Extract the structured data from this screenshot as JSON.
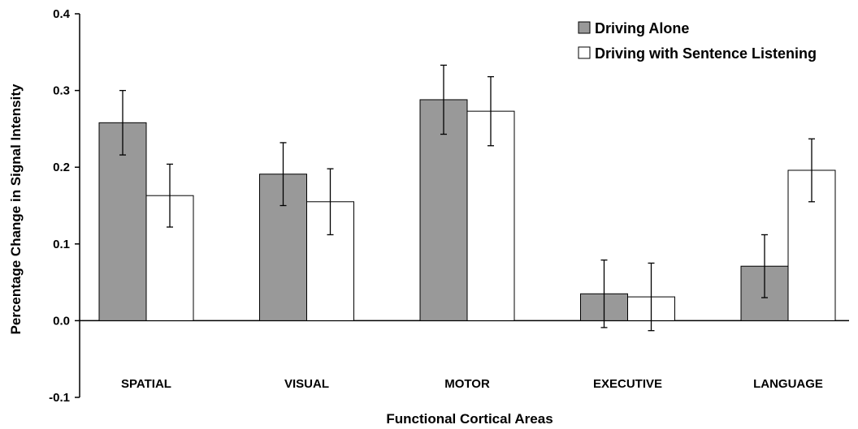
{
  "chart_data": {
    "type": "bar",
    "title": "",
    "xlabel": "Functional Cortical Areas",
    "ylabel": "Percentage Change in Signal Intensity",
    "ylim": [
      -0.1,
      0.4
    ],
    "yticks": [
      "0.4",
      "0.3",
      "0.2",
      "0.1",
      "0.0",
      "-0.1"
    ],
    "categories": [
      "SPATIAL",
      "VISUAL",
      "MOTOR",
      "EXECUTIVE",
      "LANGUAGE"
    ],
    "series": [
      {
        "name": "Driving Alone",
        "color": "#999999",
        "values": [
          0.258,
          0.191,
          0.288,
          0.035,
          0.071
        ],
        "errors": [
          0.042,
          0.041,
          0.045,
          0.044,
          0.041
        ]
      },
      {
        "name": "Driving with Sentence Listening",
        "color": "#ffffff",
        "values": [
          0.163,
          0.155,
          0.273,
          0.031,
          0.196
        ],
        "errors": [
          0.041,
          0.043,
          0.045,
          0.044,
          0.041
        ]
      }
    ],
    "legend_position": "top-right",
    "grid": false
  }
}
